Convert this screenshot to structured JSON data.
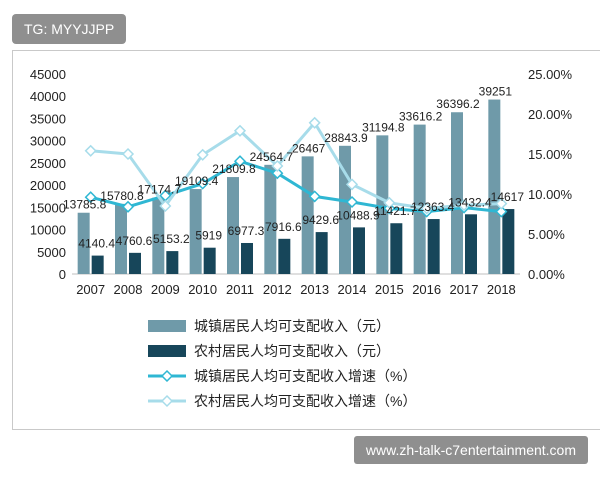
{
  "watermark_top": "TG: MYYJJPP",
  "watermark_bottom": "www.zh-talk-c7entertainment.com",
  "chart_data": {
    "type": "bar",
    "categories": [
      "2007",
      "2008",
      "2009",
      "2010",
      "2011",
      "2012",
      "2013",
      "2014",
      "2015",
      "2016",
      "2017",
      "2018"
    ],
    "y_left": {
      "min": 0,
      "max": 45000,
      "ticks": [
        "0",
        "5000",
        "10000",
        "15000",
        "20000",
        "25000",
        "30000",
        "35000",
        "40000",
        "45000"
      ]
    },
    "y_right": {
      "min": 0,
      "max": 25,
      "ticks": [
        "0.00%",
        "5.00%",
        "10.00%",
        "15.00%",
        "20.00%",
        "25.00%"
      ]
    },
    "bar_series": [
      {
        "name": "城镇居民人均可支配收入（元）",
        "color": "#6f9aa9",
        "values": [
          13785.8,
          15780.8,
          17174.7,
          19109.4,
          21809.8,
          24564.7,
          26467,
          28843.9,
          31194.8,
          33616.2,
          36396.2,
          39251
        ],
        "labels": [
          "13785.8",
          "15780.8",
          "17174.7",
          "19109.4",
          "21809.8",
          "24564.7",
          "26467",
          "28843.9",
          "31194.8",
          "33616.2",
          "36396.2",
          "39251"
        ]
      },
      {
        "name": "农村居民人均可支配收入（元）",
        "color": "#17465a",
        "values": [
          4140.4,
          4760.6,
          5153.2,
          5919,
          6977.3,
          7916.6,
          9429.6,
          10488.9,
          11421.7,
          12363.4,
          13432.4,
          14617
        ],
        "labels": [
          "4140.4",
          "4760.6",
          "5153.2",
          "5919",
          "6977.3",
          "7916.6",
          "9429.6",
          "10488.9",
          "11421.7",
          "12363.4",
          "13432.4",
          "14617"
        ]
      }
    ],
    "line_series": [
      {
        "name": "城镇居民人均可支配收入增速（%）",
        "color": "#2fb7d3",
        "values": [
          9.6,
          8.4,
          9.8,
          11.3,
          14.1,
          12.6,
          9.7,
          9.0,
          8.2,
          7.8,
          8.3,
          7.8
        ]
      },
      {
        "name": "农村居民人均可支配收入增速（%）",
        "color": "#a7dcea",
        "values": [
          15.4,
          15.0,
          8.5,
          14.9,
          17.9,
          13.5,
          18.9,
          11.2,
          8.9,
          8.2,
          8.6,
          8.8
        ]
      }
    ]
  }
}
